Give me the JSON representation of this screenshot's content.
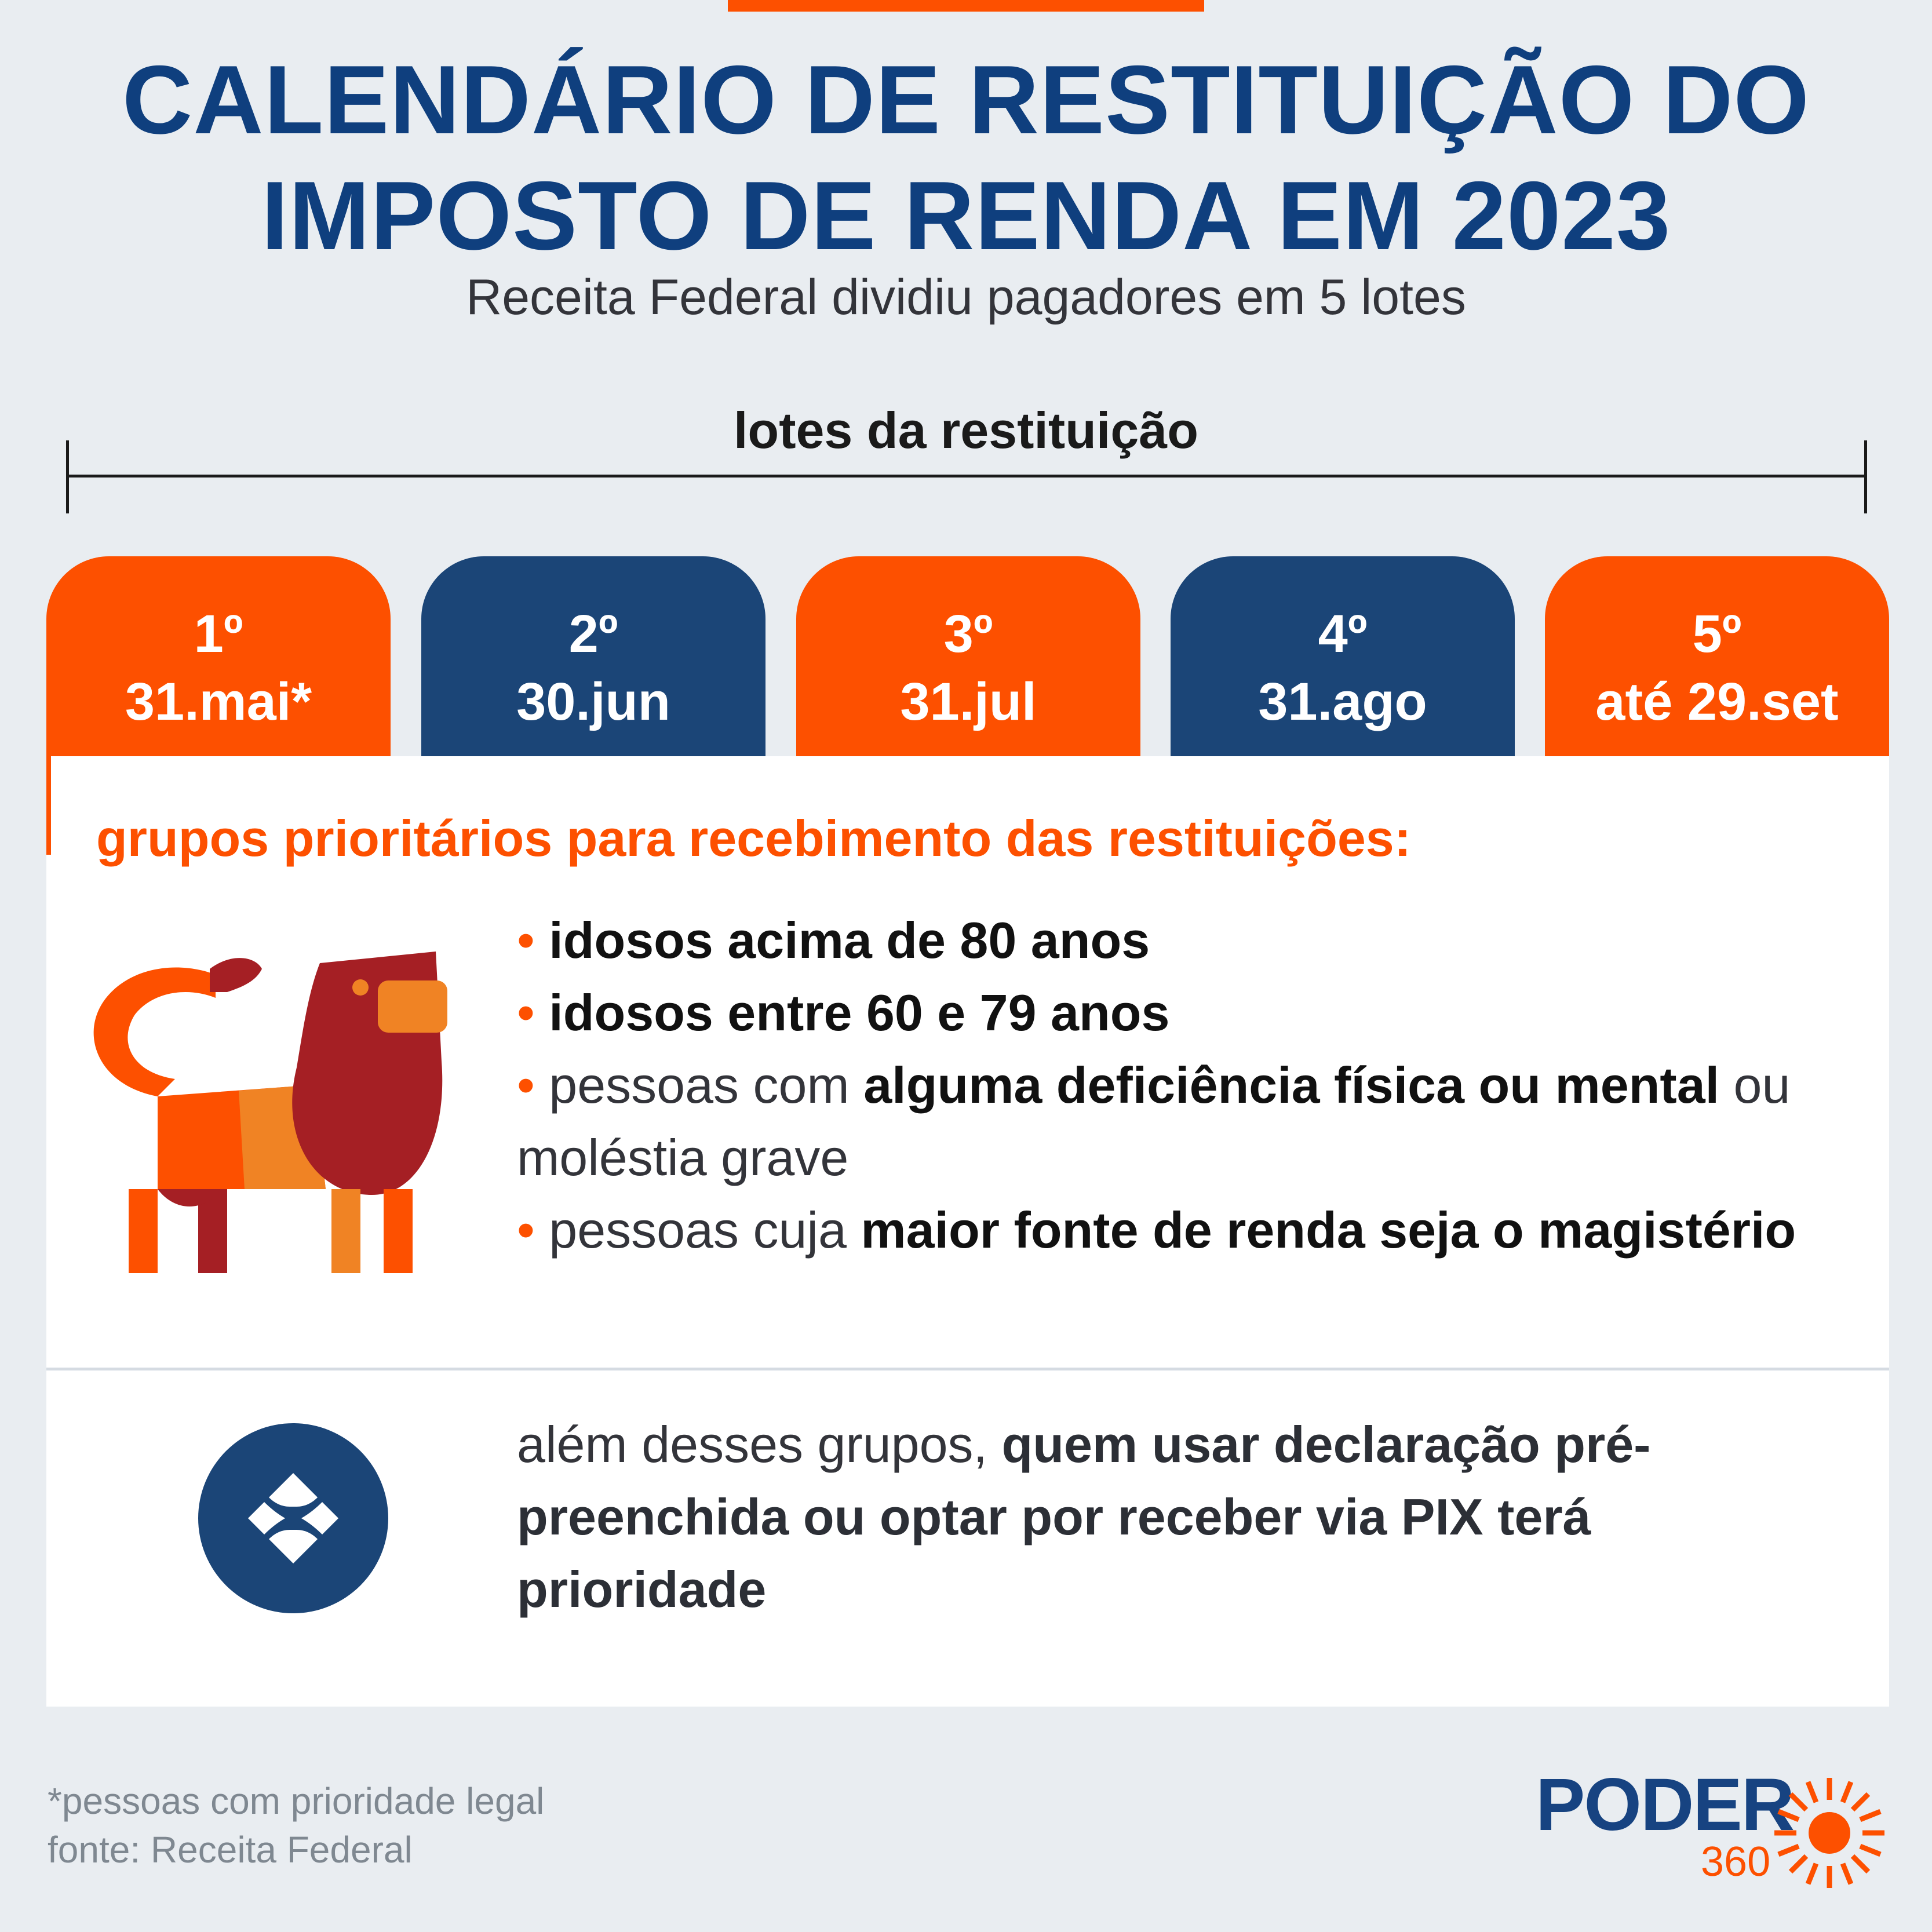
{
  "header": {
    "title_line1": "CALENDÁRIO DE RESTITUIÇÃO DO",
    "title_line2": "IMPOSTO DE RENDA EM 2023",
    "subtitle": "Receita Federal dividiu pagadores em 5 lotes"
  },
  "timeline": {
    "label": "lotes da restituição"
  },
  "lots": [
    {
      "ordinal": "1º",
      "date": "31.mai*"
    },
    {
      "ordinal": "2º",
      "date": "30.jun"
    },
    {
      "ordinal": "3º",
      "date": "31.jul"
    },
    {
      "ordinal": "4º",
      "date": "31.ago"
    },
    {
      "ordinal": "5º",
      "date": "até 29.set"
    }
  ],
  "groups": {
    "heading": "grupos prioritários para recebimento das restituições:",
    "bullet": "•",
    "items": [
      {
        "normal": "",
        "bold": "idosos acima de 80 anos",
        "tail": ""
      },
      {
        "normal": "",
        "bold": "idosos entre 60 e 79 anos",
        "tail": ""
      },
      {
        "normal": "pessoas com ",
        "bold": "alguma deficiência física ou mental",
        "tail": " ou moléstia grave"
      },
      {
        "normal": "pessoas cuja ",
        "bold": "maior fonte de renda seja o magistério",
        "tail": ""
      }
    ]
  },
  "pix": {
    "normal": "além desses grupos, ",
    "bold": "quem usar declaração pré-preenchida ou optar por receber via PIX terá prioridade"
  },
  "footer": {
    "note": "*pessoas com prioridade legal",
    "source": "fonte: Receita Federal"
  },
  "logo": {
    "name": "PODER",
    "number": "360"
  },
  "colors": {
    "orange": "#fd5000",
    "navy": "#1b4577",
    "title_blue": "#0f3f7e",
    "background": "#e9edf1"
  },
  "icons": {
    "illustration": "lion-icon",
    "pix": "pix-icon",
    "logo_mark": "sun-icon"
  }
}
